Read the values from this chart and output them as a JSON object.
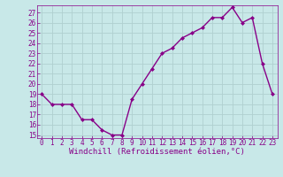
{
  "x": [
    0,
    1,
    2,
    3,
    4,
    5,
    6,
    7,
    8,
    9,
    10,
    11,
    12,
    13,
    14,
    15,
    16,
    17,
    18,
    19,
    20,
    21,
    22,
    23
  ],
  "y": [
    19,
    18,
    18,
    18,
    16.5,
    16.5,
    15.5,
    15,
    15,
    18.5,
    20,
    21.5,
    23,
    23.5,
    24.5,
    25,
    25.5,
    26.5,
    26.5,
    27.5,
    26,
    26.5,
    22,
    19
  ],
  "ylim_min": 14.7,
  "ylim_max": 27.7,
  "xlim_min": -0.5,
  "xlim_max": 23.5,
  "yticks": [
    15,
    16,
    17,
    18,
    19,
    20,
    21,
    22,
    23,
    24,
    25,
    26,
    27
  ],
  "xticks": [
    0,
    1,
    2,
    3,
    4,
    5,
    6,
    7,
    8,
    9,
    10,
    11,
    12,
    13,
    14,
    15,
    16,
    17,
    18,
    19,
    20,
    21,
    22,
    23
  ],
  "xlabel": "Windchill (Refroidissement éolien,°C)",
  "line_color": "#880088",
  "marker": "D",
  "marker_size": 2.0,
  "bg_color": "#c8e8e8",
  "grid_color": "#b0d0d0",
  "tick_label_fontsize": 5.5,
  "xlabel_fontsize": 6.5,
  "linewidth": 1.0
}
